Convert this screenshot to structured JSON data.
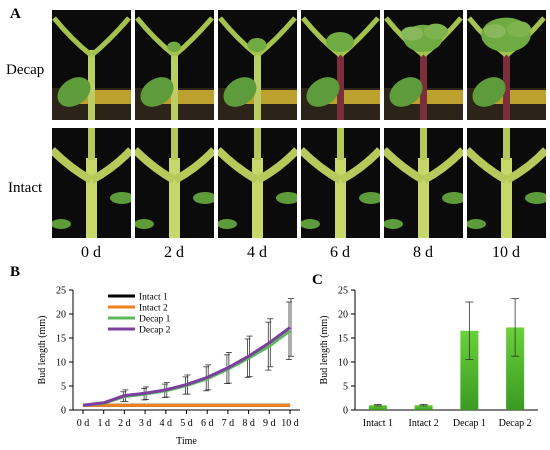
{
  "panels": {
    "a": "A",
    "b": "B",
    "c": "C"
  },
  "photo_grid": {
    "rows": [
      "Decap",
      "Intact"
    ],
    "columns": [
      "0 d",
      "2 d",
      "4 d",
      "6 d",
      "8 d",
      "10 d"
    ]
  },
  "chart_data": [
    {
      "type": "line",
      "ylabel": "Bud length (mm)",
      "xlabel": "Time",
      "x": [
        "0 d",
        "1 d",
        "2 d",
        "3 d",
        "4 d",
        "5 d",
        "6 d",
        "7 d",
        "8 d",
        "9 d",
        "10 d"
      ],
      "ylim": [
        0,
        25
      ],
      "yticks": [
        0,
        5,
        10,
        15,
        20,
        25
      ],
      "legend": "top-left",
      "series": [
        {
          "name": "Intact 1",
          "color": "#000000",
          "values": [
            1,
            1,
            1,
            1,
            1,
            1,
            1,
            1,
            1,
            1,
            1
          ]
        },
        {
          "name": "Intact 2",
          "color": "#f07f1e",
          "values": [
            1,
            1,
            1,
            1,
            1,
            1,
            1,
            1,
            1,
            1,
            1
          ]
        },
        {
          "name": "Decap 1",
          "color": "#5cb85c",
          "values": [
            1,
            1.4,
            2.8,
            3.3,
            4,
            5.1,
            6.5,
            8.5,
            10.8,
            13.3,
            16.5
          ],
          "error": [
            0,
            0,
            1,
            1.2,
            1.4,
            1.8,
            2.5,
            3,
            4,
            5,
            6
          ]
        },
        {
          "name": "Decap 2",
          "color": "#7b3fa0",
          "values": [
            1,
            1.5,
            3,
            3.5,
            4.2,
            5.3,
            6.8,
            8.8,
            11.2,
            14,
            17.2
          ],
          "error": [
            0,
            0,
            1.2,
            1.3,
            1.5,
            2,
            2.6,
            3.2,
            4.2,
            5,
            6
          ]
        }
      ]
    },
    {
      "type": "bar",
      "ylabel": "Bud length (mm)",
      "categories": [
        "Intact 1",
        "Intact 2",
        "Decap 1",
        "Decap 2"
      ],
      "values": [
        1,
        1,
        16.5,
        17.2
      ],
      "error": [
        0.15,
        0.15,
        6,
        6
      ],
      "ylim": [
        0,
        25
      ],
      "yticks": [
        0,
        5,
        10,
        15,
        20,
        25
      ],
      "color": "#6ad13a"
    }
  ]
}
